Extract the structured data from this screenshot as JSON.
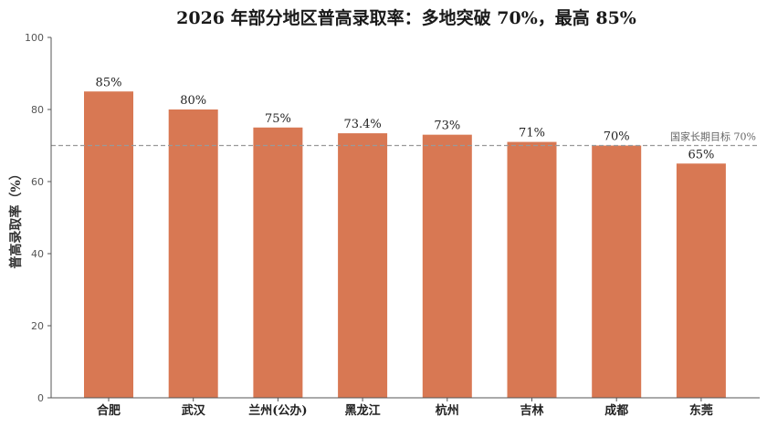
{
  "chart_data": {
    "type": "bar",
    "title": "2026 年部分地区普高录取率：多地突破 70%，最高 85%",
    "xlabel": "",
    "ylabel": "普高录取率（%）",
    "categories": [
      "合肥",
      "武汉",
      "兰州(公办)",
      "黑龙江",
      "杭州",
      "吉林",
      "成都",
      "东莞"
    ],
    "values": [
      85,
      80,
      75,
      73.4,
      73,
      71,
      70,
      65
    ],
    "data_labels": [
      "85%",
      "80%",
      "75%",
      "73.4%",
      "73%",
      "71%",
      "70%",
      "65%"
    ],
    "ylim": [
      0,
      100
    ],
    "yticks": [
      0,
      20,
      40,
      60,
      80,
      100
    ],
    "grid": false,
    "reference_line": {
      "value": 70,
      "label": "国家长期目标 70%"
    },
    "colors": {
      "bar": "#d87853",
      "reference": "#999999",
      "axis": "#555555"
    }
  }
}
